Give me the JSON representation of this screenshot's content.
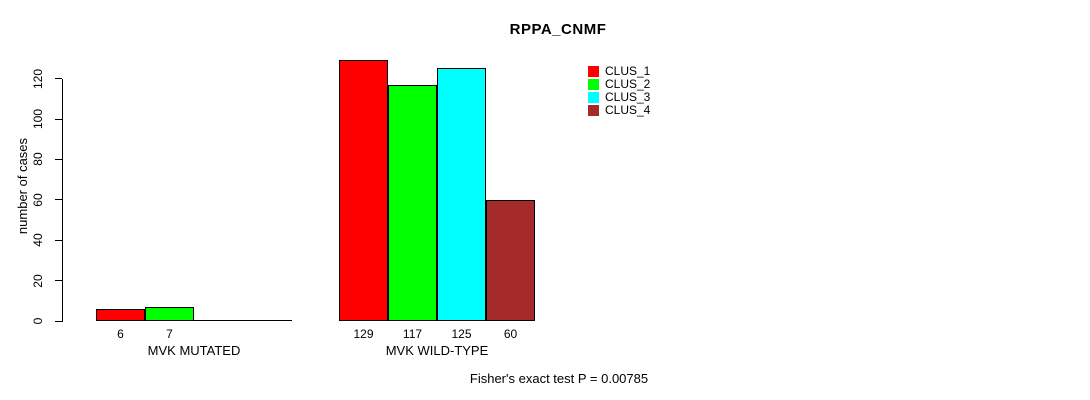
{
  "chart_data": {
    "type": "bar",
    "title": "RPPA_CNMF",
    "ylabel": "number of cases",
    "xlabel": "",
    "ylim": [
      0,
      130
    ],
    "yticks": [
      0,
      20,
      40,
      60,
      80,
      100,
      120
    ],
    "grid": false,
    "legend_position": "top-right",
    "categories": [
      "MVK MUTATED",
      "MVK WILD-TYPE"
    ],
    "series": [
      {
        "name": "CLUS_1",
        "color": "#ff0000",
        "values": [
          6,
          129
        ]
      },
      {
        "name": "CLUS_2",
        "color": "#00ff00",
        "values": [
          7,
          117
        ]
      },
      {
        "name": "CLUS_3",
        "color": "#00ffff",
        "values": [
          0,
          125
        ]
      },
      {
        "name": "CLUS_4",
        "color": "#a52a2a",
        "values": [
          0,
          60
        ]
      }
    ],
    "bar_value_labels": [
      "6",
      "7",
      "129",
      "117",
      "125",
      "60"
    ],
    "annotation": "Fisher's exact test P = 0.00785",
    "bar_border_color": "#000000"
  }
}
